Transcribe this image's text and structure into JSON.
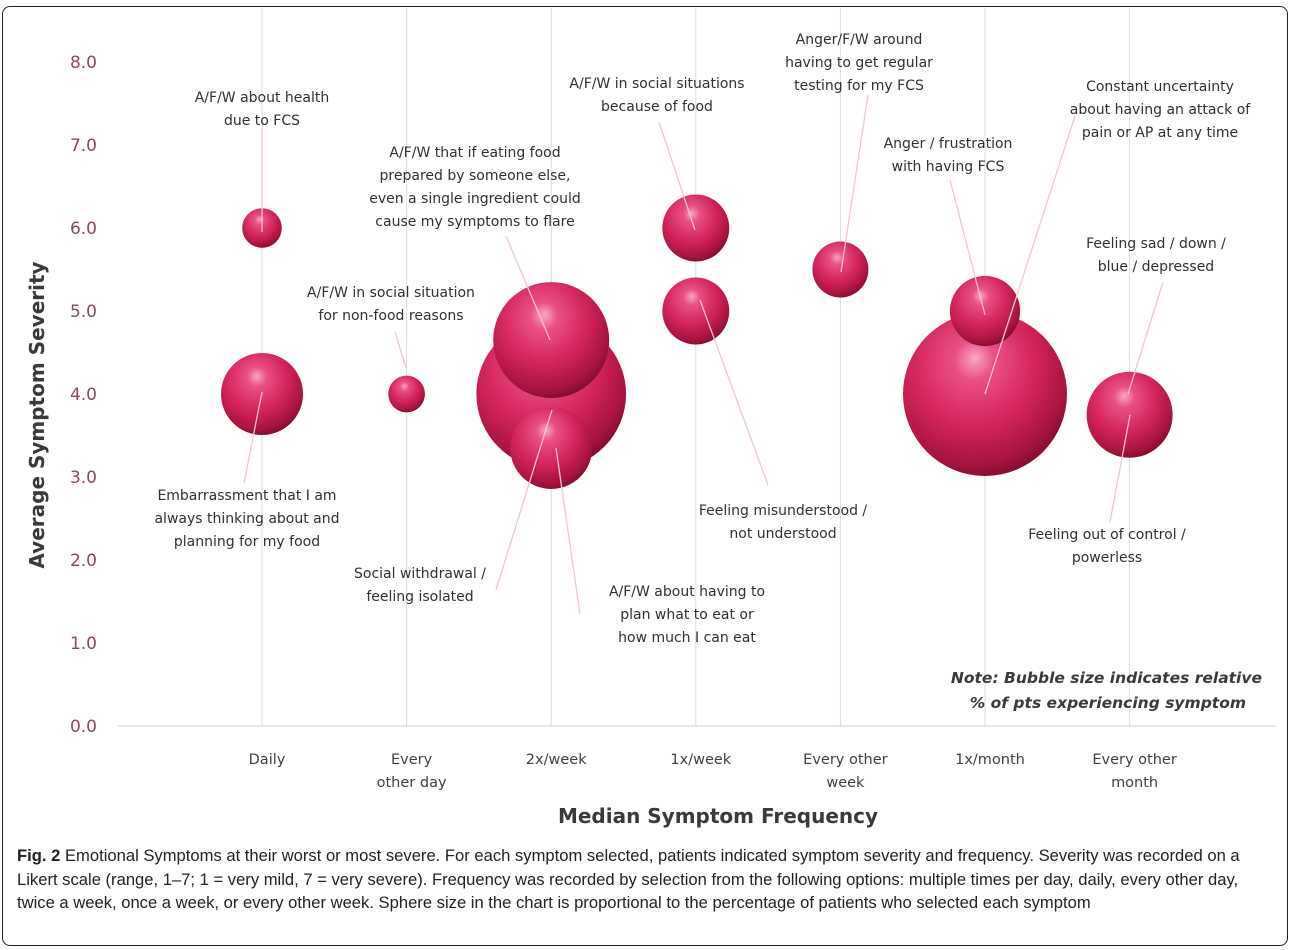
{
  "chart_data": {
    "type": "bubble",
    "xlabel": "Median Symptom Frequency",
    "ylabel": "Average Symptom Severity",
    "categories": [
      "Daily",
      "Every other day",
      "2x/week",
      "1x/week",
      "Every other week",
      "1x/month",
      "Every other month"
    ],
    "category_lines": [
      [
        "Daily"
      ],
      [
        "Every",
        "other day"
      ],
      [
        "2x/week"
      ],
      [
        "1x/week"
      ],
      [
        "Every other",
        "week"
      ],
      [
        "1x/month"
      ],
      [
        "Every other",
        "month"
      ]
    ],
    "ylim": [
      0,
      8.0
    ],
    "yticks": [
      "0.0",
      "1.0",
      "2.0",
      "3.0",
      "4.0",
      "5.0",
      "6.0",
      "7.0",
      "8.0"
    ],
    "vertical_grid": true,
    "bubble_color": "#d4245c",
    "note_lines": [
      "Note: Bubble size indicates relative",
      "% of pts experiencing symptom"
    ],
    "bubbles": [
      {
        "label": "A/F/W about health due to FCS",
        "x": "Daily",
        "y": 6.0,
        "size": 0.07
      },
      {
        "label": "Embarrassment that I am always thinking about and planning for my food",
        "x": "Daily",
        "y": 4.0,
        "size": 0.3
      },
      {
        "label": "A/F/W in social situation for non-food reasons",
        "x": "Every other day",
        "y": 4.0,
        "size": 0.06
      },
      {
        "label": "Social withdrawal / feeling isolated",
        "x": "2x/week",
        "y": 4.0,
        "size": 1.0
      },
      {
        "label": "A/F/W that if eating food prepared by someone else, even a single ingredient could cause my symptoms to flare",
        "x": "2x/week",
        "y": 4.65,
        "size": 0.6
      },
      {
        "label": "A/F/W about having to plan what to eat or how much I can eat",
        "x": "2x/week",
        "y": 3.35,
        "size": 0.3
      },
      {
        "label": "A/F/W in social situations because of food",
        "x": "1x/week",
        "y": 6.0,
        "size": 0.2
      },
      {
        "label": "Feeling misunderstood / not understood",
        "x": "1x/week",
        "y": 5.0,
        "size": 0.2
      },
      {
        "label": "Anger/F/W around having to get regular testing for my FCS",
        "x": "Every other week",
        "y": 5.5,
        "size": 0.14
      },
      {
        "label": "Anger / frustration with having FCS",
        "x": "1x/month",
        "y": 5.0,
        "size": 0.22
      },
      {
        "label": "Constant uncertainty about having an attack of pain or AP at any time",
        "x": "1x/month",
        "y": 4.0,
        "size": 1.2
      },
      {
        "label": "Feeling out of control / powerless",
        "x": "Every other month",
        "y": 3.75,
        "size": 0.33
      },
      {
        "label": "Feeling sad / down / blue / depressed",
        "x": "Every other month",
        "y": 3.75,
        "size": 0.33
      }
    ],
    "annotations": [
      {
        "lines": [
          "A/F/W about health",
          "due to FCS"
        ],
        "bubble": 0
      },
      {
        "lines": [
          "Embarrassment that I am",
          "always thinking about and",
          "planning for my food"
        ],
        "bubble": 1
      },
      {
        "lines": [
          "A/F/W in social situation",
          "for non-food reasons"
        ],
        "bubble": 2
      },
      {
        "lines": [
          "Social withdrawal /",
          "feeling isolated"
        ],
        "bubble": 3
      },
      {
        "lines": [
          "A/F/W that if eating food",
          "prepared by someone else,",
          "even a single ingredient could",
          "cause my symptoms to flare"
        ],
        "bubble": 4
      },
      {
        "lines": [
          "A/F/W about having to",
          "plan what to eat or",
          "how much I can eat"
        ],
        "bubble": 5
      },
      {
        "lines": [
          "A/F/W in social situations",
          "because of food"
        ],
        "bubble": 6
      },
      {
        "lines": [
          "Feeling misunderstood /",
          "not understood"
        ],
        "bubble": 7
      },
      {
        "lines": [
          "Anger/F/W around",
          "having to get regular",
          "testing for my FCS"
        ],
        "bubble": 8
      },
      {
        "lines": [
          "Anger / frustration",
          "with having FCS"
        ],
        "bubble": 9
      },
      {
        "lines": [
          "Constant uncertainty",
          "about having an attack of",
          "pain or AP at any time"
        ],
        "bubble": 10
      },
      {
        "lines": [
          "Feeling out of control /",
          "powerless"
        ],
        "bubble": 11
      },
      {
        "lines": [
          "Feeling sad / down /",
          "blue / depressed"
        ],
        "bubble": 12
      }
    ]
  },
  "caption": {
    "label": "Fig. 2",
    "text": "Emotional Symptoms at their worst or most severe. For each symptom selected, patients indicated symptom severity and frequency. Severity was recorded on a Likert scale (range, 1–7; 1 = very mild, 7 = very severe). Frequency was recorded by selection from the following options: multiple times per day, daily, every other day, twice a week, once a week, or every other week. Sphere size in the chart is proportional to the percentage of patients who selected each symptom"
  }
}
